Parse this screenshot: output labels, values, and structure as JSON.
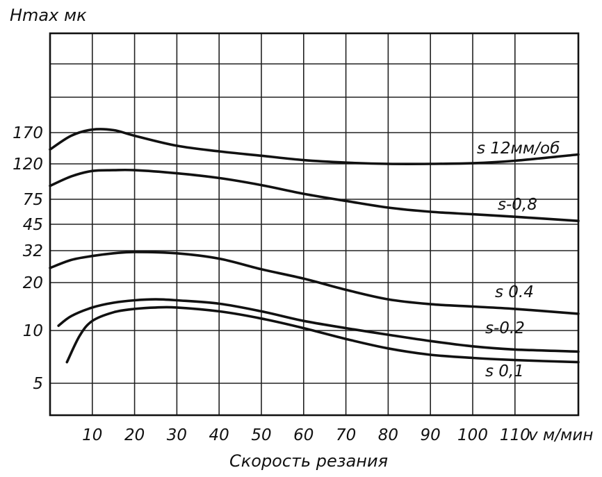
{
  "chart_data": {
    "type": "line",
    "title": "",
    "ylabel": "Hmax мк",
    "xlabel": "Скорость резания",
    "x_unit_label": "v м/мин",
    "x_ticks": [
      "10",
      "20",
      "30",
      "40",
      "50",
      "60",
      "70",
      "80",
      "90",
      "100",
      "110"
    ],
    "y_ticks": [
      "5",
      "10",
      "20",
      "32",
      "45",
      "75",
      "120",
      "170"
    ],
    "xlim": [
      0,
      125
    ],
    "grid": true,
    "series": [
      {
        "name": "s 12мм/об",
        "x": [
          0,
          5,
          10,
          15,
          20,
          30,
          40,
          50,
          60,
          70,
          80,
          90,
          100,
          110,
          125
        ],
        "y": [
          143,
          165,
          176,
          175,
          165,
          149,
          140,
          133,
          126,
          122,
          120,
          120,
          121,
          125,
          135
        ]
      },
      {
        "name": "s-0,8",
        "x": [
          0,
          5,
          10,
          15,
          20,
          30,
          40,
          50,
          60,
          70,
          80,
          90,
          100,
          110,
          125
        ],
        "y": [
          92,
          104,
          111,
          112,
          112,
          108,
          102,
          93,
          82,
          73,
          65,
          60,
          57,
          54,
          49
        ]
      },
      {
        "name": "s 0.4",
        "x": [
          0,
          5,
          10,
          15,
          20,
          30,
          40,
          50,
          60,
          70,
          80,
          90,
          100,
          110,
          125
        ],
        "y": [
          25.5,
          28.5,
          30,
          31,
          31.5,
          31,
          29,
          25,
          21.5,
          18.5,
          16.5,
          15.5,
          15,
          14.5,
          13.5
        ]
      },
      {
        "name": "s-0.2",
        "x": [
          2,
          5,
          10,
          15,
          20,
          25,
          30,
          40,
          50,
          60,
          70,
          80,
          90,
          100,
          110,
          125
        ],
        "y": [
          11,
          13,
          14.8,
          15.8,
          16.3,
          16.5,
          16.3,
          15.6,
          14,
          12,
          10.5,
          9.6,
          9,
          8.5,
          8.2,
          8
        ]
      },
      {
        "name": "s 0,1",
        "x": [
          4,
          7,
          10,
          15,
          20,
          25,
          30,
          40,
          50,
          60,
          70,
          80,
          90,
          100,
          110,
          125
        ],
        "y": [
          7,
          9.5,
          12,
          13.8,
          14.5,
          14.8,
          14.8,
          14,
          12.5,
          10.5,
          9.2,
          8.3,
          7.7,
          7.4,
          7.2,
          7
        ]
      }
    ]
  }
}
